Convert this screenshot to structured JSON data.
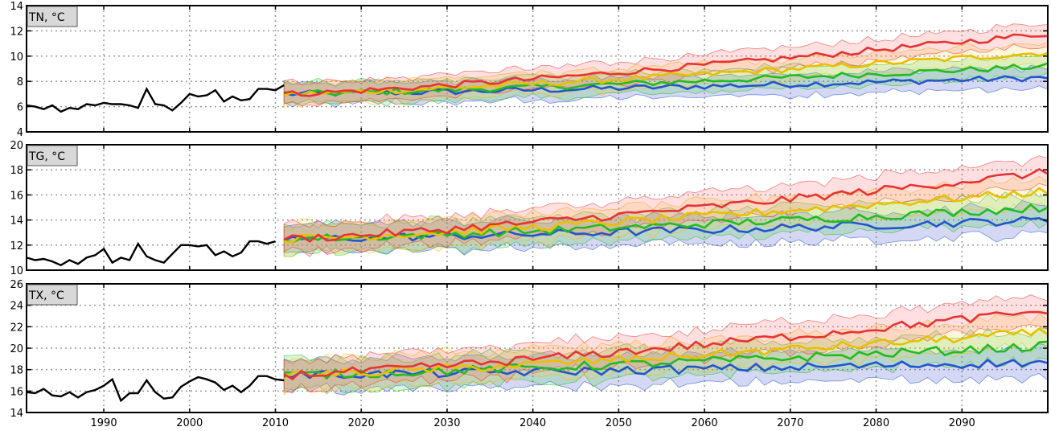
{
  "chart_data": [
    {
      "type": "line",
      "label": "TN, °C",
      "ylim": [
        4,
        14
      ],
      "yticks": [
        4,
        6,
        8,
        10,
        12,
        14
      ],
      "xlim": [
        1981,
        2100
      ],
      "observed": {
        "x_start": 1981,
        "values": [
          6.1,
          6.0,
          5.8,
          6.1,
          5.6,
          5.9,
          5.8,
          6.2,
          6.1,
          6.3,
          6.2,
          6.2,
          6.1,
          5.9,
          7.4,
          6.2,
          6.1,
          5.7,
          6.3,
          7.0,
          6.8,
          6.9,
          7.3,
          6.4,
          6.8,
          6.5,
          6.6,
          7.4,
          7.4,
          7.3,
          7.7
        ]
      },
      "scenarios": {
        "x_start": 2011,
        "start": 7.0,
        "end": [
          8.3,
          9.2,
          10.3,
          11.8
        ],
        "spread": 0.9
      }
    },
    {
      "type": "line",
      "label": "TG, °C",
      "ylim": [
        10,
        20
      ],
      "yticks": [
        10,
        12,
        14,
        16,
        18,
        20
      ],
      "xlim": [
        1981,
        2100
      ],
      "observed": {
        "x_start": 1981,
        "values": [
          11.0,
          10.8,
          10.9,
          10.7,
          10.4,
          10.8,
          10.5,
          11.0,
          11.2,
          11.7,
          10.6,
          11.0,
          10.8,
          12.1,
          11.1,
          10.8,
          10.6,
          11.3,
          12.0,
          12.0,
          11.9,
          12.0,
          11.2,
          11.5,
          11.1,
          11.4,
          12.3,
          12.3,
          12.1,
          12.3
        ]
      },
      "scenarios": {
        "x_start": 2011,
        "start": 12.5,
        "end": [
          14.0,
          15.0,
          16.3,
          17.8
        ],
        "spread": 1.2
      }
    },
    {
      "type": "line",
      "label": "TX, °C",
      "ylim": [
        14,
        26
      ],
      "yticks": [
        14,
        16,
        18,
        20,
        22,
        24,
        26
      ],
      "xlim": [
        1981,
        2100
      ],
      "observed": {
        "x_start": 1981,
        "values": [
          15.9,
          15.8,
          16.2,
          15.6,
          15.5,
          15.9,
          15.4,
          15.9,
          16.1,
          16.5,
          17.1,
          15.1,
          15.8,
          15.8,
          17.0,
          15.9,
          15.3,
          15.4,
          16.4,
          16.9,
          17.3,
          17.1,
          16.8,
          16.1,
          16.5,
          15.9,
          16.5,
          17.4,
          17.4,
          17.1,
          17.0
        ]
      },
      "scenarios": {
        "x_start": 2011,
        "start": 17.5,
        "end": [
          18.7,
          20.2,
          21.5,
          23.5
        ],
        "spread": 1.5
      }
    }
  ],
  "x_ticks": [
    1990,
    2000,
    2010,
    2020,
    2030,
    2040,
    2050,
    2060,
    2070,
    2080,
    2090
  ],
  "series_colors": {
    "observed": "#000000",
    "low": "#2255cc",
    "mid_low": "#22bb22",
    "mid_high": "#e8c000",
    "high": "#e83333"
  },
  "band_fills": {
    "low": "#2e3ec8",
    "mid_low": "#3ccf3c",
    "mid_high": "#ffd24a",
    "high": "#ff6060"
  }
}
